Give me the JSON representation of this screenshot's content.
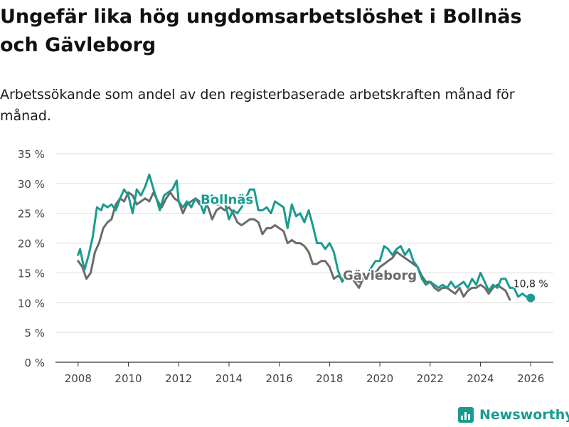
{
  "header": {
    "title": "Ungefär lika hög ungdomsarbetslöshet i Bollnäs och Gävleborg",
    "subtitle": "Arbetssökande som andel av den registerbaserade arbetskraften månad för månad."
  },
  "footer": {
    "brand": "Newsworthy"
  },
  "chart_data": {
    "type": "line",
    "title": "Ungefär lika hög ungdomsarbetslöshet i Bollnäs och Gävleborg",
    "subtitle": "Arbetssökande som andel av den registerbaserade arbetskraften månad för månad.",
    "xlabel": "",
    "ylabel": "",
    "xlim": [
      2007.1,
      2026.9
    ],
    "ylim": [
      0,
      35
    ],
    "y_ticks": [
      0,
      5,
      10,
      15,
      20,
      25,
      30,
      35
    ],
    "y_tick_labels": [
      "0 %",
      "5 %",
      "10 %",
      "15 %",
      "20 %",
      "25 %",
      "30 %",
      "35 %"
    ],
    "x_ticks": [
      2008,
      2010,
      2012,
      2014,
      2016,
      2018,
      2020,
      2022,
      2024,
      2026
    ],
    "x_tick_labels": [
      "2008",
      "2010",
      "2012",
      "2014",
      "2016",
      "2018",
      "2020",
      "2022",
      "2024",
      "2026"
    ],
    "grid": true,
    "series": [
      {
        "name": "Gävleborg",
        "label": "Gävleborg",
        "color": "#6b6b6b",
        "x": [
          2008.0,
          2008.17,
          2008.33,
          2008.5,
          2008.67,
          2008.83,
          2009.0,
          2009.17,
          2009.33,
          2009.5,
          2009.67,
          2009.83,
          2010.0,
          2010.17,
          2010.33,
          2010.5,
          2010.67,
          2010.83,
          2011.0,
          2011.17,
          2011.33,
          2011.5,
          2011.67,
          2011.83,
          2012.0,
          2012.17,
          2012.33,
          2012.5,
          2012.67,
          2012.83,
          2013.0,
          2013.17,
          2013.33,
          2013.5,
          2013.67,
          2013.83,
          2014.0,
          2014.17,
          2014.33,
          2014.5,
          2014.67,
          2014.83,
          2015.0,
          2015.17,
          2015.33,
          2015.5,
          2015.67,
          2015.83,
          2016.0,
          2016.17,
          2016.33,
          2016.5,
          2016.67,
          2016.83,
          2017.0,
          2017.17,
          2017.33,
          2017.5,
          2017.67,
          2017.83,
          2018.0,
          2018.17,
          2018.33,
          2018.5,
          2018.67,
          2018.83,
          2019.0,
          2019.17,
          2019.33,
          2019.5,
          2019.67,
          2019.83,
          2020.0,
          2020.17,
          2020.33,
          2020.5,
          2020.67,
          2020.83,
          2021.0,
          2021.17,
          2021.33,
          2021.5,
          2021.67,
          2021.83,
          2022.0,
          2022.17,
          2022.33,
          2022.5,
          2022.67,
          2022.83,
          2023.0,
          2023.17,
          2023.33,
          2023.5,
          2023.67,
          2023.83,
          2024.0,
          2024.17,
          2024.33,
          2024.5,
          2024.67,
          2024.83,
          2025.0,
          2025.17
        ],
        "values": [
          17.0,
          16.0,
          14.0,
          15.0,
          18.5,
          20.0,
          22.5,
          23.5,
          24.0,
          26.5,
          27.5,
          27.0,
          28.5,
          28.0,
          26.5,
          27.0,
          27.5,
          27.0,
          28.5,
          27.0,
          26.0,
          27.5,
          28.5,
          27.5,
          27.0,
          25.0,
          26.5,
          27.0,
          27.5,
          26.5,
          27.0,
          26.0,
          24.0,
          25.5,
          26.0,
          25.5,
          26.0,
          25.0,
          23.5,
          23.0,
          23.5,
          24.0,
          24.0,
          23.5,
          21.5,
          22.5,
          22.5,
          23.0,
          22.5,
          22.0,
          20.0,
          20.5,
          20.0,
          20.0,
          19.5,
          18.5,
          16.5,
          16.5,
          17.0,
          17.0,
          16.0,
          14.0,
          14.5,
          14.0,
          14.0,
          14.5,
          13.5,
          12.5,
          14.0,
          15.0,
          15.5,
          15.0,
          16.0,
          16.5,
          17.0,
          17.5,
          18.5,
          18.0,
          17.5,
          17.0,
          16.5,
          16.0,
          14.5,
          13.5,
          13.5,
          12.5,
          12.0,
          12.5,
          12.5,
          12.0,
          11.5,
          12.5,
          11.0,
          12.0,
          12.5,
          12.5,
          13.0,
          12.5,
          11.5,
          12.5,
          13.0,
          12.5,
          12.0,
          10.5
        ]
      },
      {
        "name": "Bollnäs",
        "label": "Bollnäs",
        "color": "#1a9b8f",
        "x": [
          2008.0,
          2008.08,
          2008.25,
          2008.42,
          2008.58,
          2008.75,
          2008.92,
          2009.0,
          2009.17,
          2009.33,
          2009.5,
          2009.67,
          2009.83,
          2010.0,
          2010.17,
          2010.33,
          2010.5,
          2010.67,
          2010.83,
          2011.0,
          2011.08,
          2011.25,
          2011.42,
          2011.58,
          2011.75,
          2011.92,
          2012.0,
          2012.17,
          2012.33,
          2012.5,
          2012.67,
          2012.83,
          2013.0,
          2013.17,
          2013.33,
          2013.5,
          2013.67,
          2013.83,
          2014.0,
          2014.17,
          2014.33,
          2014.5,
          2014.67,
          2014.83,
          2015.0,
          2015.17,
          2015.33,
          2015.5,
          2015.67,
          2015.83,
          2016.0,
          2016.17,
          2016.33,
          2016.5,
          2016.67,
          2016.83,
          2017.0,
          2017.17,
          2017.33,
          2017.5,
          2017.67,
          2017.83,
          2018.0,
          2018.17,
          2018.33,
          2018.5,
          2018.67,
          2018.83,
          2019.0,
          2019.17,
          2019.33,
          2019.5,
          2019.67,
          2019.83,
          2020.0,
          2020.17,
          2020.33,
          2020.5,
          2020.67,
          2020.83,
          2021.0,
          2021.17,
          2021.33,
          2021.5,
          2021.67,
          2021.83,
          2022.0,
          2022.17,
          2022.33,
          2022.5,
          2022.67,
          2022.83,
          2023.0,
          2023.17,
          2023.33,
          2023.5,
          2023.67,
          2023.83,
          2024.0,
          2024.17,
          2024.33,
          2024.5,
          2024.67,
          2024.83,
          2025.0,
          2025.17,
          2025.33,
          2025.5,
          2025.67,
          2025.83,
          2026.0
        ],
        "values": [
          18.0,
          19.0,
          15.5,
          18.0,
          21.0,
          26.0,
          25.5,
          26.5,
          26.0,
          26.5,
          25.5,
          27.5,
          29.0,
          28.0,
          25.0,
          29.0,
          28.0,
          29.5,
          31.5,
          29.0,
          28.0,
          25.5,
          28.0,
          28.5,
          29.0,
          30.5,
          27.0,
          26.0,
          27.0,
          26.0,
          27.5,
          27.0,
          25.0,
          27.5,
          28.0,
          26.5,
          26.5,
          27.0,
          24.0,
          25.5,
          25.0,
          26.0,
          27.5,
          29.0,
          29.0,
          25.5,
          25.5,
          26.0,
          25.0,
          27.0,
          26.5,
          26.0,
          22.5,
          26.5,
          24.5,
          25.0,
          23.5,
          25.5,
          23.0,
          20.0,
          20.0,
          19.0,
          20.0,
          18.5,
          15.5,
          13.5,
          14.5,
          14.5,
          14.0,
          13.5,
          14.5,
          14.5,
          16.0,
          17.0,
          17.0,
          19.5,
          19.0,
          18.0,
          19.0,
          19.5,
          18.0,
          19.0,
          17.0,
          16.0,
          14.0,
          13.0,
          13.5,
          13.0,
          12.5,
          13.0,
          12.5,
          13.5,
          12.5,
          13.0,
          13.5,
          12.5,
          14.0,
          13.0,
          15.0,
          13.5,
          12.0,
          13.0,
          12.5,
          14.0,
          14.0,
          12.5,
          12.5,
          11.0,
          11.5,
          11.0,
          10.8
        ]
      }
    ],
    "end_annotation": {
      "series": "Bollnäs",
      "x": 2026.0,
      "y": 10.8,
      "label": "10,8 %"
    }
  }
}
